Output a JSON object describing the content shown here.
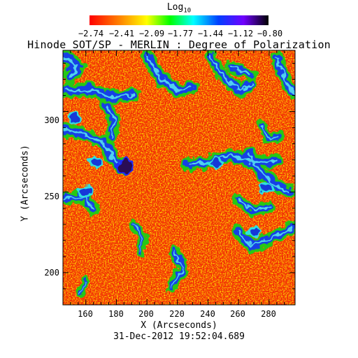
{
  "title": "Hinode SOT/SP - MERLIN : Degree of Polarization",
  "colorbar": {
    "label_main": "Log",
    "label_sub": "10",
    "ticks": [
      "−2.74",
      "−2.41",
      "−2.09",
      "−1.77",
      "−1.44",
      "−1.12",
      "−0.80"
    ],
    "range": [
      -2.74,
      -0.8
    ],
    "colormap": "rainbow (red-orange-yellow-green-cyan-blue-violet-black)",
    "colors": [
      "#ff0000",
      "#ff8c00",
      "#ffff00",
      "#00ff00",
      "#00ffff",
      "#0040ff",
      "#7000ff",
      "#000000"
    ]
  },
  "timestamp": "31-Dec-2012 19:52:04.689",
  "chart_data": {
    "type": "heatmap",
    "title": "Hinode SOT/SP - MERLIN : Degree of Polarization",
    "xlabel": "X (Arcseconds)",
    "ylabel": "Y (Arcseconds)",
    "xticks": [
      "160",
      "180",
      "200",
      "220",
      "240",
      "260",
      "280"
    ],
    "yticks": [
      "200",
      "250",
      "300"
    ],
    "xlim": [
      145,
      297
    ],
    "ylim": [
      180,
      338
    ],
    "color_scale_label": "Log10",
    "color_range": [
      -2.74,
      -0.8
    ],
    "background_value_approx": -2.7,
    "features": [
      {
        "desc": "strong polarization patch (dark/black)",
        "x": 186,
        "y": 266
      },
      {
        "desc": "network (blue/cyan)",
        "x": 152,
        "y": 296
      },
      {
        "desc": "network (blue/cyan)",
        "x": 167,
        "y": 268
      },
      {
        "desc": "network (blue/cyan)",
        "x": 278,
        "y": 253
      },
      {
        "desc": "network (blue/cyan)",
        "x": 245,
        "y": 268
      },
      {
        "desc": "network (blue/cyan)",
        "x": 270,
        "y": 226
      },
      {
        "desc": "network (blue/cyan)",
        "x": 160,
        "y": 250
      }
    ]
  }
}
